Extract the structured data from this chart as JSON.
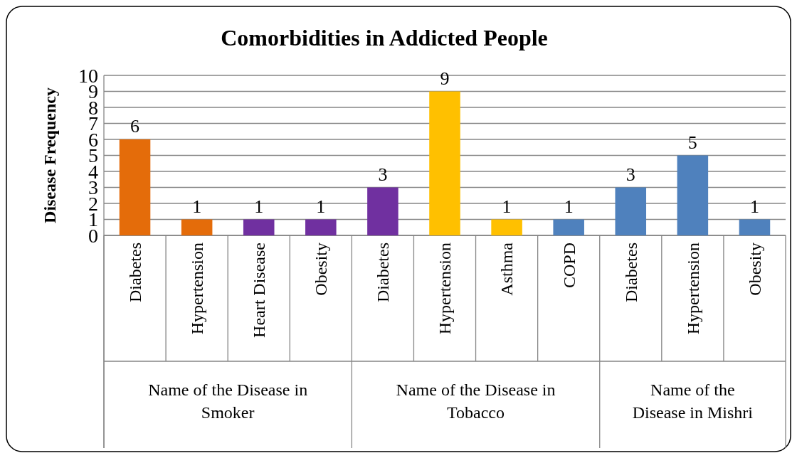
{
  "chart_data": {
    "type": "bar",
    "title": "Comorbidities in Addicted People",
    "ylabel": "Disease Frequency",
    "categories": [
      "Diabetes",
      "Hypertension",
      "Heart Disease",
      "Obesity",
      "Diabetes",
      "Hypertension",
      "Asthma",
      "COPD",
      "Diabetes",
      "Hypertension",
      "Obesity"
    ],
    "values": [
      6,
      1,
      1,
      1,
      3,
      9,
      1,
      1,
      3,
      5,
      1
    ],
    "colors": [
      "#e46c0a",
      "#e46c0a",
      "#7030a0",
      "#7030a0",
      "#7030a0",
      "#ffc000",
      "#ffc000",
      "#4f81bd",
      "#4f81bd",
      "#4f81bd",
      "#4f81bd"
    ],
    "annotations": [
      "Name of the Disease in Smoker",
      "Name of the Disease in Tobacco",
      "Name of the Disease in Mishri"
    ],
    "ylim": [
      0,
      10
    ],
    "yticks": [
      0,
      1,
      2,
      3,
      4,
      5,
      6,
      7,
      8,
      9,
      10
    ],
    "grid": "y",
    "data_labels": true
  }
}
